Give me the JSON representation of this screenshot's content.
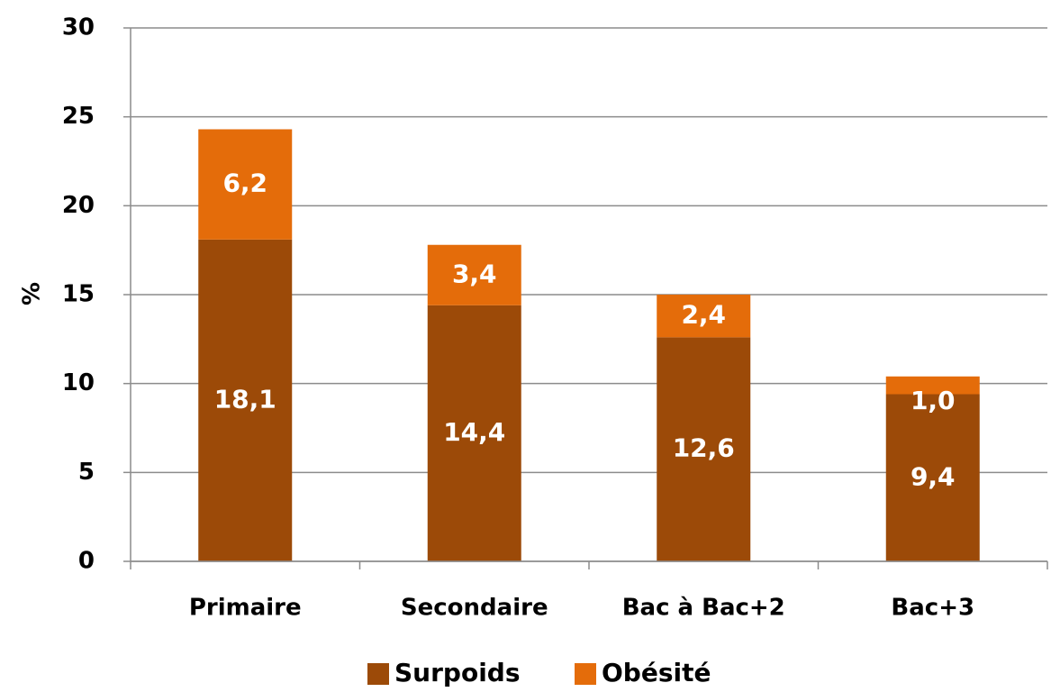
{
  "chart_data": {
    "type": "stacked_bar",
    "y_label": "%",
    "categories": [
      "Primaire",
      "Secondaire",
      "Bac à Bac+2",
      "Bac+3"
    ],
    "series": [
      {
        "name": "Surpoids",
        "color": "#9c4a08",
        "values": [
          18.1,
          14.4,
          12.6,
          9.4
        ],
        "value_labels": [
          "18,1",
          "14,4",
          "12,6",
          "9,4"
        ]
      },
      {
        "name": "Obésité",
        "color": "#e46c0a",
        "values": [
          6.2,
          3.4,
          2.4,
          1.0
        ],
        "value_labels": [
          "6,2",
          "3,4",
          "2,4",
          "1,0"
        ]
      }
    ],
    "ylim": [
      0,
      30
    ],
    "yticks": [
      0,
      5,
      10,
      15,
      20,
      25,
      30
    ],
    "grid": true,
    "legend": "bottom"
  }
}
